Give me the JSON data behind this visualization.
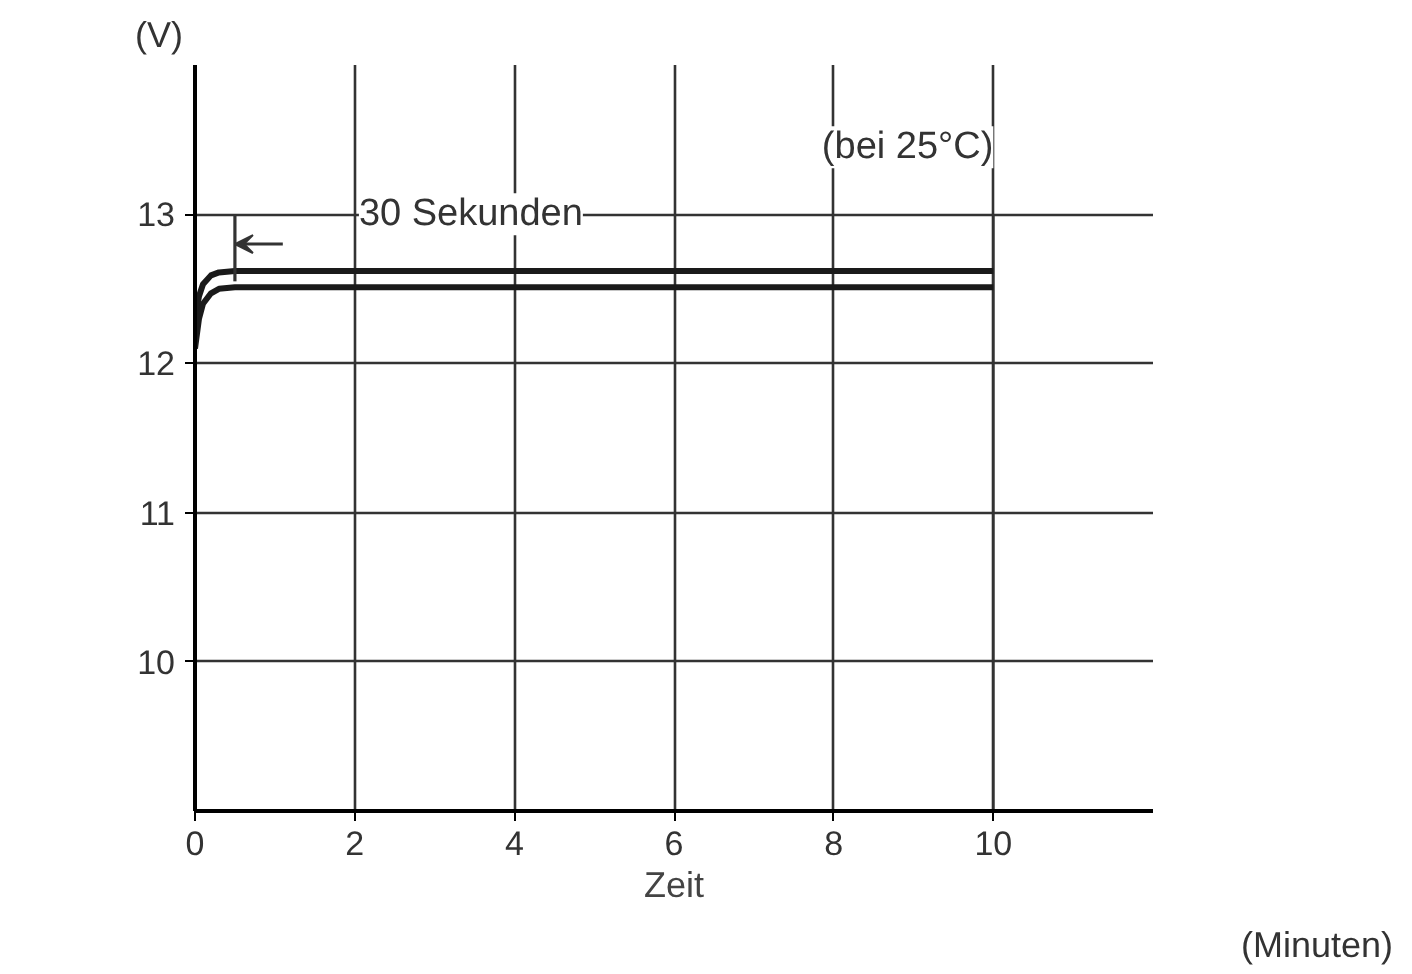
{
  "chart_data": {
    "type": "line",
    "xlabel": "Zeit",
    "ylabel": "(V)",
    "annotations": [
      "(bei 25°C)",
      "(Minuten)"
    ],
    "xlim": [
      0,
      12
    ],
    "ylim": [
      9,
      14
    ],
    "xticks": [
      0,
      2,
      4,
      6,
      8,
      10
    ],
    "yticks": [
      10,
      11,
      12,
      13
    ],
    "grid": true,
    "marker": "none",
    "line_style": "solid",
    "ref_lines": [
      {
        "axis": "x",
        "value": 0.5,
        "label": "30 Sekunden"
      }
    ],
    "series": [
      {
        "color": "#1a1a1a",
        "x": [
          0,
          0.05,
          0.1,
          0.2,
          0.3,
          0.5,
          1,
          10
        ],
        "values": [
          12.3,
          12.45,
          12.53,
          12.59,
          12.61,
          12.62,
          12.62,
          12.62
        ]
      },
      {
        "color": "#1a1a1a",
        "x": [
          0,
          0.05,
          0.1,
          0.2,
          0.3,
          0.5,
          1,
          10
        ],
        "values": [
          12.1,
          12.3,
          12.4,
          12.47,
          12.5,
          12.51,
          12.51,
          12.51
        ]
      }
    ]
  }
}
